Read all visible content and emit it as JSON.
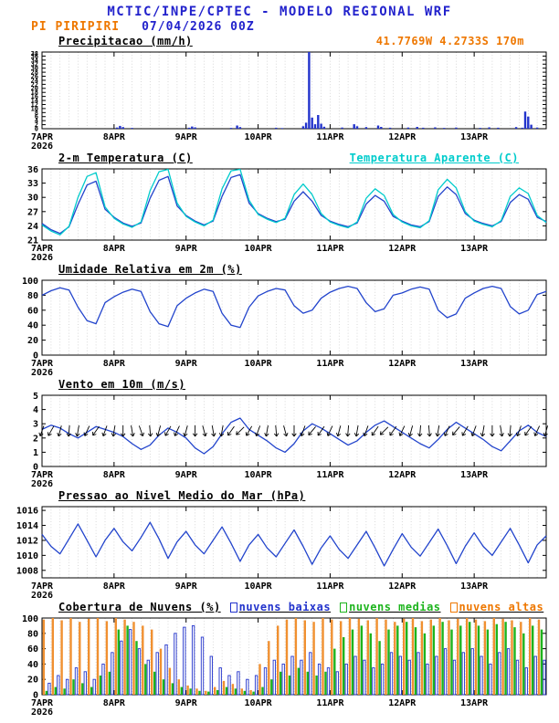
{
  "header": {
    "title": "MCTIC/INPE/CPTEC - MODELO REGIONAL WRF",
    "station": "PI PIRIPIRI",
    "run_datetime": "07/04/2026 00Z",
    "location": "41.7769W 4.2733S 170m"
  },
  "colors": {
    "title_blue": "#2222CC",
    "orange": "#EE7700",
    "line_blue": "#2244CC",
    "cyan": "#00CCCC",
    "green": "#1DB41D",
    "cloud_orange": "#F09030",
    "grid": "#C9C9C9",
    "axis": "#000000"
  },
  "x_axis": {
    "range": [
      0,
      168
    ],
    "step_hours": 3,
    "grid_step_hours": 3,
    "year_label": "2026",
    "day_ticks": [
      {
        "h": 0,
        "label": "7APR"
      },
      {
        "h": 24,
        "label": "8APR"
      },
      {
        "h": 48,
        "label": "9APR"
      },
      {
        "h": 72,
        "label": "10APR"
      },
      {
        "h": 96,
        "label": "11APR"
      },
      {
        "h": 120,
        "label": "12APR"
      },
      {
        "h": 144,
        "label": "13APR"
      }
    ]
  },
  "chart_data": [
    {
      "id": "precip",
      "type": "bar",
      "title": "Precipitacao (mm/h)",
      "ylim": [
        0,
        38
      ],
      "ytick_font": 7,
      "yticks": [
        0,
        2,
        4,
        6,
        8,
        10,
        12,
        14,
        16,
        18,
        20,
        22,
        24,
        26,
        28,
        30,
        32,
        34,
        36,
        38
      ],
      "bar_color": "#2233CC",
      "bars": [
        [
          25,
          0.6
        ],
        [
          26,
          1.4
        ],
        [
          27,
          0.8
        ],
        [
          30,
          0.4
        ],
        [
          49,
          0.5
        ],
        [
          50,
          1.1
        ],
        [
          51,
          0.7
        ],
        [
          63,
          0.4
        ],
        [
          65,
          1.6
        ],
        [
          66,
          0.8
        ],
        [
          78,
          0.5
        ],
        [
          80,
          0.3
        ],
        [
          87,
          1.2
        ],
        [
          88,
          3.0
        ],
        [
          89,
          38
        ],
        [
          90,
          5.5
        ],
        [
          91,
          2.2
        ],
        [
          92,
          6.8
        ],
        [
          93,
          2.5
        ],
        [
          94,
          1.0
        ],
        [
          100,
          0.6
        ],
        [
          104,
          2.2
        ],
        [
          105,
          1.2
        ],
        [
          108,
          0.8
        ],
        [
          112,
          1.6
        ],
        [
          113,
          0.9
        ],
        [
          116,
          0.5
        ],
        [
          122,
          0.6
        ],
        [
          125,
          0.9
        ],
        [
          127,
          0.5
        ],
        [
          131,
          0.7
        ],
        [
          134,
          0.4
        ],
        [
          138,
          0.6
        ],
        [
          146,
          0.4
        ],
        [
          149,
          0.7
        ],
        [
          152,
          0.5
        ],
        [
          158,
          0.8
        ],
        [
          160,
          0.5
        ],
        [
          161,
          8.5
        ],
        [
          162,
          6.0
        ],
        [
          163,
          2.0
        ],
        [
          165,
          0.6
        ]
      ]
    },
    {
      "id": "temp2m",
      "type": "line",
      "title": "2-m Temperatura (C)",
      "right_title": "Temperatura Aparente (C)",
      "ylim": [
        21,
        36
      ],
      "yticks": [
        21,
        24,
        27,
        30,
        33,
        36
      ],
      "series": [
        {
          "name": "2-m Temperatura (C)",
          "color": "#2244CC",
          "values": [
            24.5,
            23.2,
            22.4,
            23.8,
            28.5,
            32.6,
            33.4,
            27.5,
            25.8,
            24.6,
            23.9,
            24.6,
            29.8,
            33.6,
            34.4,
            28.2,
            26.2,
            25.0,
            24.2,
            25.0,
            30.2,
            34.2,
            34.8,
            28.8,
            26.6,
            25.6,
            24.9,
            25.4,
            29.2,
            31.2,
            29.2,
            26.2,
            25.0,
            24.3,
            23.8,
            24.6,
            28.6,
            30.4,
            29.2,
            26.0,
            25.0,
            24.2,
            23.8,
            24.9,
            30.2,
            32.2,
            30.6,
            26.6,
            25.2,
            24.5,
            24.0,
            24.9,
            28.9,
            30.6,
            29.6,
            25.8,
            24.9
          ]
        },
        {
          "name": "Temperatura Aparente (C)",
          "color": "#00CCCC",
          "values": [
            24.2,
            22.9,
            22.1,
            23.9,
            30.0,
            34.4,
            35.2,
            28.0,
            25.6,
            24.4,
            23.7,
            24.8,
            31.4,
            35.4,
            35.9,
            28.8,
            26.0,
            24.8,
            24.0,
            25.2,
            31.8,
            35.6,
            35.9,
            29.4,
            26.4,
            25.4,
            24.7,
            25.6,
            30.6,
            32.8,
            30.6,
            26.6,
            24.8,
            24.1,
            23.6,
            24.8,
            29.8,
            31.8,
            30.4,
            26.4,
            24.8,
            24.0,
            23.6,
            25.1,
            31.6,
            33.8,
            32.0,
            27.0,
            25.0,
            24.3,
            23.8,
            25.1,
            30.2,
            32.0,
            30.8,
            26.2,
            24.7
          ]
        }
      ]
    },
    {
      "id": "rh2m",
      "type": "line",
      "title": "Umidade Relativa em 2m (%)",
      "ylim": [
        0,
        100
      ],
      "yticks": [
        0,
        20,
        40,
        60,
        80,
        100
      ],
      "series": [
        {
          "name": "Umidade Relativa",
          "color": "#2244CC",
          "values": [
            80,
            86,
            90,
            87,
            64,
            46,
            42,
            70,
            78,
            84,
            88,
            85,
            58,
            42,
            38,
            66,
            76,
            83,
            88,
            85,
            56,
            40,
            37,
            64,
            79,
            85,
            89,
            87,
            66,
            56,
            60,
            76,
            84,
            89,
            92,
            89,
            70,
            58,
            62,
            80,
            83,
            88,
            91,
            88,
            60,
            50,
            55,
            76,
            83,
            89,
            92,
            89,
            65,
            55,
            60,
            81,
            85
          ]
        }
      ]
    },
    {
      "id": "wind10m",
      "type": "wind",
      "title": "Vento em 10m (m/s)",
      "ylim": [
        0,
        5
      ],
      "yticks": [
        0,
        1,
        2,
        3,
        4,
        5
      ],
      "series": [
        {
          "name": "Vento em 10m",
          "color": "#2244CC",
          "values": [
            2.6,
            2.9,
            2.7,
            2.3,
            2.0,
            2.4,
            2.8,
            2.6,
            2.4,
            2.1,
            1.6,
            1.2,
            1.5,
            2.2,
            2.7,
            2.4,
            2.0,
            1.3,
            0.9,
            1.4,
            2.3,
            3.1,
            3.4,
            2.6,
            2.2,
            1.8,
            1.3,
            1.0,
            1.6,
            2.5,
            3.0,
            2.7,
            2.3,
            1.9,
            1.5,
            1.8,
            2.4,
            2.9,
            3.2,
            2.8,
            2.4,
            2.0,
            1.6,
            1.3,
            1.9,
            2.6,
            3.1,
            2.7,
            2.3,
            1.9,
            1.4,
            1.1,
            1.8,
            2.5,
            2.9,
            2.4,
            2.1
          ]
        }
      ],
      "arrows": {
        "level": 2.5,
        "angles_deg": [
          200,
          210,
          195,
          185,
          190,
          205,
          215,
          200,
          190,
          180,
          170,
          160,
          175,
          195,
          210,
          205,
          195,
          180,
          165,
          170,
          190,
          215,
          225,
          210,
          200,
          190,
          175,
          165,
          180,
          200,
          220,
          215,
          205,
          195,
          185,
          190,
          200,
          215,
          225,
          215,
          205,
          195,
          185,
          175,
          190,
          205,
          220,
          210,
          200,
          190,
          180,
          170,
          185,
          200,
          215,
          205,
          195
        ]
      }
    },
    {
      "id": "mslp",
      "type": "line",
      "title": "Pressao ao Nivel Medio do Mar (hPa)",
      "ylim": [
        1007,
        1016.5
      ],
      "yticks": [
        1008,
        1010,
        1012,
        1014,
        1016
      ],
      "series": [
        {
          "name": "Pressao",
          "color": "#2244CC",
          "values": [
            1012.8,
            1011.2,
            1010.2,
            1012.2,
            1014.2,
            1012.0,
            1009.8,
            1012.0,
            1013.6,
            1011.8,
            1010.6,
            1012.4,
            1014.4,
            1012.2,
            1009.6,
            1011.8,
            1013.2,
            1011.4,
            1010.2,
            1012.0,
            1013.8,
            1011.6,
            1009.2,
            1011.4,
            1012.8,
            1011.0,
            1009.8,
            1011.6,
            1013.4,
            1011.2,
            1008.8,
            1011.0,
            1012.6,
            1010.8,
            1009.6,
            1011.4,
            1013.2,
            1011.0,
            1008.6,
            1010.8,
            1012.9,
            1011.1,
            1009.9,
            1011.7,
            1013.5,
            1011.3,
            1008.9,
            1011.2,
            1013.0,
            1011.2,
            1010.0,
            1011.8,
            1013.6,
            1011.4,
            1009.0,
            1011.4,
            1012.6
          ]
        }
      ]
    },
    {
      "id": "clouds",
      "type": "cloud_bars",
      "title": "Cobertura de Nuvens (%)",
      "ylim": [
        0,
        100
      ],
      "yticks": [
        0,
        20,
        40,
        60,
        80,
        100
      ],
      "legend": [
        {
          "label": "nuvens baixas",
          "color": "#2233CC"
        },
        {
          "label": "nuvens medias",
          "color": "#1DB41D"
        },
        {
          "label": "nuvens altas",
          "color": "#EE7700"
        }
      ],
      "series": [
        {
          "name": "nuvens altas",
          "color": "#F09030",
          "outline": false,
          "values": [
            98,
            100,
            97,
            100,
            95,
            99,
            100,
            96,
            100,
            98,
            95,
            90,
            85,
            60,
            35,
            20,
            12,
            8,
            5,
            10,
            18,
            14,
            8,
            6,
            40,
            70,
            90,
            98,
            100,
            97,
            95,
            100,
            98,
            96,
            100,
            99,
            97,
            100,
            98,
            95,
            99,
            100,
            96,
            98,
            100,
            97,
            99,
            100,
            98,
            96,
            100,
            99,
            97,
            95,
            100,
            98,
            100
          ]
        },
        {
          "name": "nuvens medias",
          "color": "#1DB41D",
          "outline": false,
          "values": [
            5,
            10,
            8,
            20,
            15,
            10,
            25,
            30,
            85,
            90,
            70,
            40,
            30,
            20,
            15,
            10,
            8,
            5,
            4,
            6,
            10,
            8,
            5,
            4,
            10,
            20,
            30,
            25,
            35,
            30,
            25,
            30,
            60,
            75,
            85,
            90,
            80,
            70,
            85,
            90,
            95,
            88,
            80,
            90,
            95,
            85,
            90,
            95,
            90,
            85,
            92,
            95,
            88,
            80,
            90,
            85,
            88
          ]
        },
        {
          "name": "nuvens baixas",
          "color": "#2233CC",
          "outline": true,
          "values": [
            15,
            25,
            20,
            35,
            30,
            20,
            40,
            55,
            70,
            85,
            60,
            45,
            55,
            65,
            80,
            88,
            90,
            75,
            50,
            35,
            25,
            30,
            20,
            25,
            35,
            45,
            40,
            50,
            45,
            55,
            40,
            35,
            30,
            40,
            50,
            45,
            35,
            40,
            55,
            50,
            45,
            55,
            40,
            50,
            60,
            45,
            55,
            60,
            50,
            40,
            55,
            60,
            45,
            35,
            50,
            45,
            40
          ]
        }
      ]
    }
  ]
}
